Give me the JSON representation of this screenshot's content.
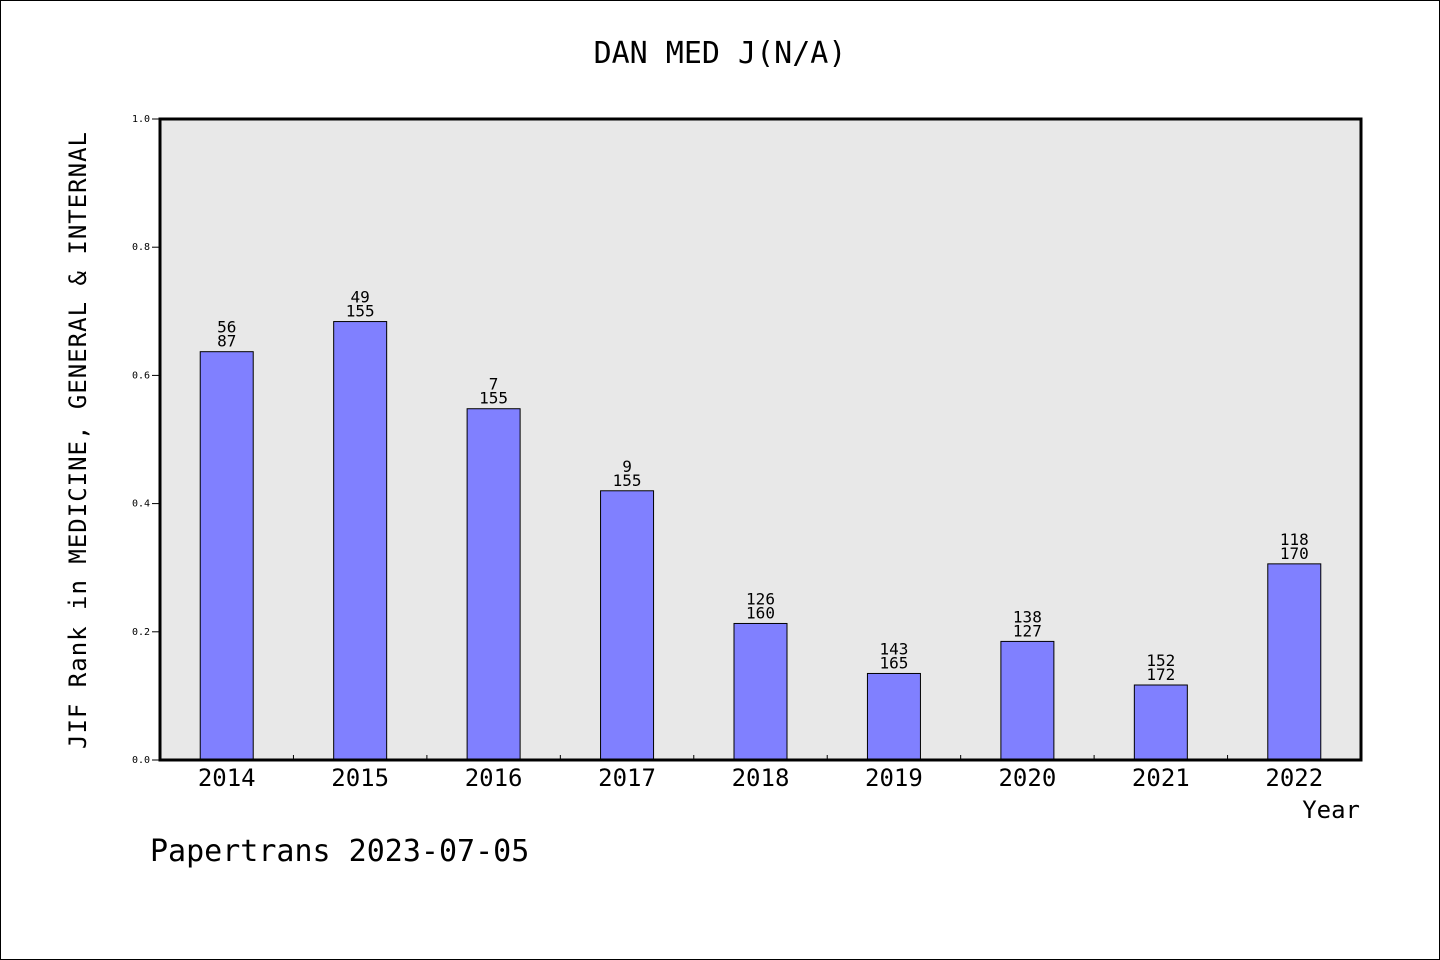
{
  "chart_data": {
    "type": "bar",
    "title": "DAN MED J(N/A)",
    "xlabel": "Year",
    "ylabel": "JIF Rank in MEDICINE, GENERAL & INTERNAL",
    "ylim": [
      0,
      1.0
    ],
    "yticks": [
      "0.0",
      "0.2",
      "0.4",
      "0.6",
      "0.8",
      "1.0"
    ],
    "grid": false,
    "colors": {
      "bar": "#8080ff",
      "plot_bg": "#e8e8e8",
      "border": "#000000"
    },
    "categories": [
      "2014",
      "2015",
      "2016",
      "2017",
      "2018",
      "2019",
      "2020",
      "2021",
      "2022"
    ],
    "values": [
      0.637,
      0.684,
      0.548,
      0.42,
      0.213,
      0.135,
      0.185,
      0.117,
      0.306
    ],
    "rank_labels": [
      [
        "56",
        "87"
      ],
      [
        "49",
        "155"
      ],
      [
        "7",
        "155"
      ],
      [
        "9",
        "155"
      ],
      [
        "126",
        "160"
      ],
      [
        "143",
        "165"
      ],
      [
        "138",
        "127"
      ],
      [
        "152",
        "172"
      ],
      [
        "118",
        "170"
      ]
    ]
  },
  "footer": "Papertrans 2023-07-05"
}
